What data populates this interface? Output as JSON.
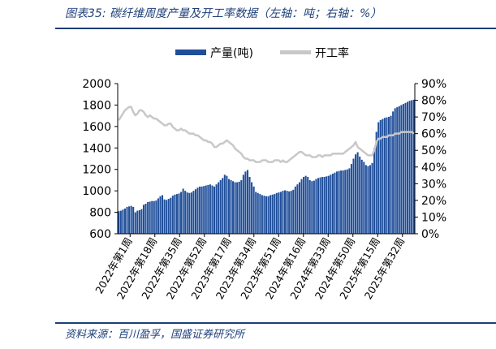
{
  "title": "图表35:  碳纤维周度产量及开工率数据（左轴：吨；右轴：%）",
  "source": "资料来源：百川盈孚，国盛证券研究所",
  "colors": {
    "bar": "#1f4e9a",
    "line": "#c8c8c8",
    "rule": "#1d3f7a",
    "text": "#1d3f7a"
  },
  "chart_data": {
    "type": "bar+line",
    "legend": {
      "placement": "top-center",
      "entries": [
        "产量(吨)",
        "开工率"
      ]
    },
    "left_axis": {
      "min": 600,
      "max": 2000,
      "step": 200,
      "ticks": [
        "2000",
        "1800",
        "1600",
        "1400",
        "1200",
        "1000",
        "800",
        "600"
      ]
    },
    "right_axis": {
      "min": 0,
      "max": 0.9,
      "step": 0.1,
      "ticks": [
        "90%",
        "80%",
        "70%",
        "60%",
        "50%",
        "40%",
        "30%",
        "20%",
        "10%",
        "0%"
      ]
    },
    "x_labels": [
      "2022年第1周",
      "2022年第18周",
      "2022年第35周",
      "2022年第52周",
      "2023年第17周",
      "2023年第34周",
      "2023年第51周",
      "2024年第16周",
      "2024年第33周",
      "2024年第50周",
      "2025年第15周",
      "2025年第32周"
    ],
    "series": [
      {
        "name": "产量(吨)",
        "type": "bar",
        "axis": "left",
        "values": [
          810,
          815,
          825,
          835,
          850,
          855,
          860,
          850,
          800,
          815,
          820,
          830,
          870,
          880,
          895,
          900,
          905,
          905,
          910,
          930,
          950,
          960,
          920,
          915,
          925,
          935,
          955,
          965,
          970,
          975,
          990,
          1020,
          1000,
          985,
          980,
          985,
          1000,
          1015,
          1030,
          1040,
          1040,
          1045,
          1050,
          1055,
          1060,
          1050,
          1040,
          1060,
          1080,
          1100,
          1120,
          1150,
          1140,
          1110,
          1100,
          1090,
          1080,
          1080,
          1085,
          1100,
          1150,
          1180,
          1195,
          1130,
          1080,
          1040,
          990,
          980,
          970,
          960,
          955,
          950,
          950,
          960,
          965,
          970,
          980,
          985,
          990,
          1000,
          1005,
          1000,
          995,
          1000,
          1010,
          1040,
          1060,
          1080,
          1110,
          1130,
          1140,
          1130,
          1100,
          1090,
          1095,
          1110,
          1120,
          1125,
          1130,
          1130,
          1135,
          1140,
          1150,
          1160,
          1170,
          1180,
          1185,
          1190,
          1190,
          1195,
          1200,
          1210,
          1250,
          1300,
          1340,
          1360,
          1320,
          1290,
          1270,
          1240,
          1230,
          1240,
          1260,
          1400,
          1550,
          1640,
          1660,
          1670,
          1680,
          1685,
          1690,
          1700,
          1740,
          1770,
          1780,
          1790,
          1800,
          1810,
          1820,
          1830,
          1840,
          1845,
          1850
        ]
      },
      {
        "name": "开工率",
        "type": "line",
        "axis": "right",
        "values": [
          0.68,
          0.7,
          0.72,
          0.74,
          0.75,
          0.76,
          0.76,
          0.73,
          0.71,
          0.72,
          0.74,
          0.74,
          0.73,
          0.71,
          0.7,
          0.71,
          0.7,
          0.69,
          0.69,
          0.68,
          0.67,
          0.66,
          0.65,
          0.65,
          0.66,
          0.66,
          0.64,
          0.63,
          0.62,
          0.62,
          0.63,
          0.62,
          0.62,
          0.61,
          0.6,
          0.6,
          0.6,
          0.59,
          0.59,
          0.58,
          0.57,
          0.56,
          0.56,
          0.55,
          0.55,
          0.54,
          0.52,
          0.52,
          0.53,
          0.54,
          0.54,
          0.55,
          0.56,
          0.55,
          0.54,
          0.53,
          0.51,
          0.5,
          0.49,
          0.48,
          0.46,
          0.45,
          0.45,
          0.44,
          0.44,
          0.44,
          0.43,
          0.43,
          0.43,
          0.44,
          0.44,
          0.44,
          0.43,
          0.43,
          0.43,
          0.44,
          0.44,
          0.44,
          0.43,
          0.44,
          0.43,
          0.43,
          0.44,
          0.45,
          0.46,
          0.47,
          0.48,
          0.49,
          0.49,
          0.48,
          0.47,
          0.47,
          0.47,
          0.46,
          0.46,
          0.46,
          0.47,
          0.47,
          0.46,
          0.47,
          0.47,
          0.47,
          0.47,
          0.48,
          0.48,
          0.48,
          0.48,
          0.48,
          0.48,
          0.49,
          0.5,
          0.51,
          0.52,
          0.53,
          0.55,
          0.52,
          0.51,
          0.5,
          0.49,
          0.48,
          0.47,
          0.47,
          0.47,
          0.5,
          0.55,
          0.57,
          0.57,
          0.58,
          0.58,
          0.58,
          0.59,
          0.59,
          0.59,
          0.6,
          0.6,
          0.6,
          0.61,
          0.61,
          0.61,
          0.61,
          0.61,
          0.61,
          0.6
        ]
      }
    ]
  }
}
